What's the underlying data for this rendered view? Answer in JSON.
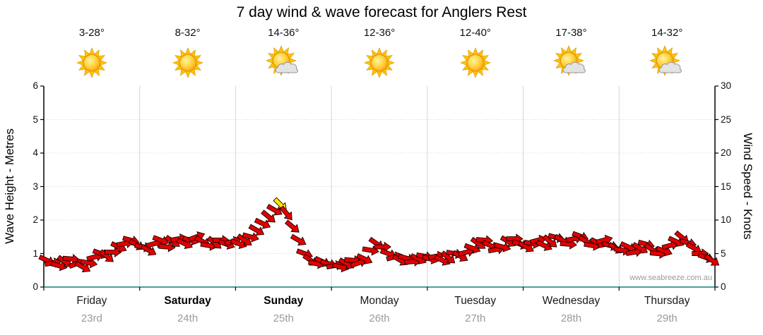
{
  "title": "7 day wind & wave forecast for Anglers Rest",
  "watermark": "www.seabreeze.com.au",
  "days": [
    {
      "name": "Friday",
      "date": "23rd",
      "temp": "3-28°",
      "icon": "sunny",
      "bold": false
    },
    {
      "name": "Saturday",
      "date": "24th",
      "temp": "8-32°",
      "icon": "sunny",
      "bold": true
    },
    {
      "name": "Sunday",
      "date": "25th",
      "temp": "14-36°",
      "icon": "partly-cloudy",
      "bold": true
    },
    {
      "name": "Monday",
      "date": "26th",
      "temp": "12-36°",
      "icon": "sunny",
      "bold": false
    },
    {
      "name": "Tuesday",
      "date": "27th",
      "temp": "12-40°",
      "icon": "sunny",
      "bold": false
    },
    {
      "name": "Wednesday",
      "date": "28th",
      "temp": "17-38°",
      "icon": "partly-cloudy",
      "bold": false
    },
    {
      "name": "Thursday",
      "date": "29th",
      "temp": "14-32°",
      "icon": "partly-cloudy",
      "bold": false
    }
  ],
  "chart_data": {
    "type": "scatter",
    "title": "7 day wind & wave forecast for Anglers Rest",
    "left_axis": {
      "label": "Wave Height - Metres",
      "min": 0,
      "max": 6,
      "ticks": [
        0,
        1,
        2,
        3,
        4,
        5,
        6
      ]
    },
    "right_axis": {
      "label": "Wind Speed - Knots",
      "min": 0,
      "max": 30,
      "ticks": [
        0,
        5,
        10,
        15,
        20,
        25,
        30
      ]
    },
    "x_days": [
      "Friday",
      "Saturday",
      "Sunday",
      "Monday",
      "Tuesday",
      "Wednesday",
      "Thursday"
    ],
    "grid": {
      "vertical_day_separators": true,
      "horizontal_dotted": true
    },
    "colors": {
      "arrow": "#e10000",
      "peak_arrow": "#ffe600",
      "bottom_axis": "#0b8080",
      "grid": "#cccccc"
    },
    "wind_series": {
      "units": "knots",
      "samples_per_day": 16,
      "knots": [
        4.0,
        3.6,
        3.2,
        3.8,
        4.2,
        3.5,
        3.0,
        3.6,
        4.5,
        5.0,
        4.6,
        5.2,
        6.0,
        6.5,
        7.0,
        6.3,
        6.0,
        5.5,
        6.5,
        7.0,
        6.0,
        6.8,
        7.2,
        6.5,
        7.0,
        7.5,
        6.8,
        6.2,
        6.6,
        7.0,
        6.4,
        6.8,
        6.5,
        7.0,
        7.5,
        8.5,
        9.5,
        10.5,
        11.5,
        12.3,
        11.0,
        9.0,
        7.0,
        5.0,
        4.0,
        3.5,
        3.8,
        3.5,
        3.2,
        3.0,
        3.5,
        4.0,
        3.6,
        4.2,
        5.5,
        6.5,
        6.0,
        5.0,
        4.5,
        4.0,
        4.3,
        3.8,
        4.2,
        4.6,
        4.2,
        4.6,
        4.0,
        4.4,
        5.0,
        4.6,
        5.2,
        5.8,
        6.5,
        7.0,
        6.2,
        5.6,
        6.0,
        6.8,
        7.2,
        6.4,
        6.0,
        6.5,
        7.0,
        6.2,
        6.8,
        7.4,
        7.0,
        6.4,
        7.2,
        7.6,
        6.8,
        6.2,
        6.6,
        7.0,
        6.2,
        5.8,
        5.5,
        6.0,
        5.2,
        5.8,
        6.4,
        5.6,
        5.0,
        5.4,
        6.2,
        6.8,
        7.4,
        6.6,
        5.8,
        5.0,
        4.4,
        4.0
      ],
      "dir_deg": [
        25,
        -10,
        15,
        35,
        5,
        -20,
        30,
        10,
        -15,
        20,
        40,
        0,
        25,
        -10,
        15,
        30,
        10,
        30,
        -15,
        20,
        5,
        35,
        -10,
        25,
        15,
        -20,
        30,
        10,
        40,
        0,
        20,
        -15,
        20,
        35,
        15,
        30,
        25,
        40,
        30,
        45,
        50,
        40,
        30,
        20,
        35,
        10,
        25,
        15,
        -10,
        15,
        30,
        5,
        -20,
        25,
        10,
        35,
        0,
        20,
        -15,
        30,
        15,
        -5,
        25,
        10,
        15,
        -10,
        25,
        40,
        10,
        30,
        -15,
        20,
        35,
        5,
        25,
        -10,
        15,
        30,
        0,
        20,
        30,
        10,
        -15,
        25,
        40,
        15,
        30,
        5,
        -10,
        20,
        35,
        10,
        25,
        -15,
        15,
        30,
        10,
        25,
        -10,
        30,
        15,
        35,
        5,
        20,
        -15,
        25,
        40,
        15,
        30,
        0,
        20,
        35
      ],
      "peak_index": 39
    }
  }
}
